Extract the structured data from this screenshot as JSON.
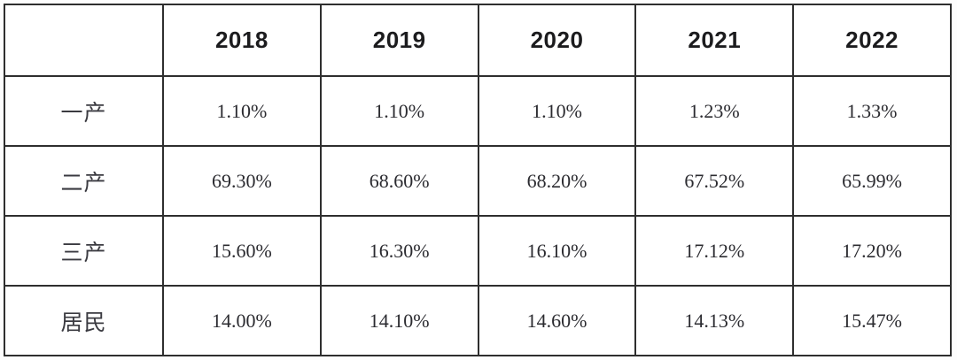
{
  "table": {
    "corner_label": "",
    "columns": [
      "2018",
      "2019",
      "2020",
      "2021",
      "2022"
    ],
    "rows": [
      {
        "label": "一产",
        "values": [
          "1.10%",
          "1.10%",
          "1.10%",
          "1.23%",
          "1.33%"
        ]
      },
      {
        "label": "二产",
        "values": [
          "69.30%",
          "68.60%",
          "68.20%",
          "67.52%",
          "65.99%"
        ]
      },
      {
        "label": "三产",
        "values": [
          "15.60%",
          "16.30%",
          "16.10%",
          "17.12%",
          "17.20%"
        ]
      },
      {
        "label": "居民",
        "values": [
          "14.00%",
          "14.10%",
          "14.60%",
          "14.13%",
          "15.47%"
        ]
      }
    ]
  },
  "chart_data": {
    "type": "table",
    "title": "",
    "categories": [
      "2018",
      "2019",
      "2020",
      "2021",
      "2022"
    ],
    "series": [
      {
        "name": "一产",
        "values": [
          1.1,
          1.1,
          1.1,
          1.23,
          1.33
        ]
      },
      {
        "name": "二产",
        "values": [
          69.3,
          68.6,
          68.2,
          67.52,
          65.99
        ]
      },
      {
        "name": "三产",
        "values": [
          15.6,
          16.3,
          16.1,
          17.12,
          17.2
        ]
      },
      {
        "name": "居民",
        "values": [
          14.0,
          14.1,
          14.6,
          14.13,
          15.47
        ]
      }
    ],
    "unit": "%"
  },
  "colors": {
    "border": "#2e2e2e",
    "header_text": "#1c1c1e",
    "body_text": "#2b2b30",
    "background": "#ffffff"
  }
}
